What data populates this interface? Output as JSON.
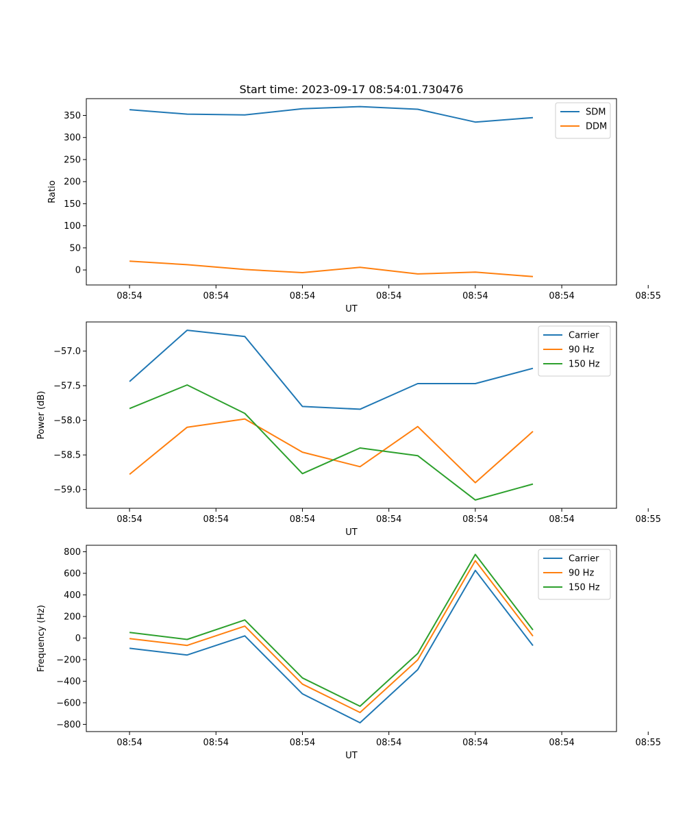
{
  "figure_title": "Start time: 2023-09-17 08:54:01.730476",
  "chart_data": [
    {
      "type": "line",
      "title": "Start time: 2023-09-17 08:54:01.730476",
      "xlabel": "UT",
      "ylabel": "Ratio",
      "xlim": [
        -0.75,
        8.45
      ],
      "ylim": [
        -34,
        388
      ],
      "x_ticks": [
        {
          "value": 0,
          "label": "08:54"
        },
        {
          "value": 1.5,
          "label": "08:54"
        },
        {
          "value": 3,
          "label": "08:54"
        },
        {
          "value": 4.5,
          "label": "08:54"
        },
        {
          "value": 6,
          "label": "08:54"
        },
        {
          "value": 7.5,
          "label": "08:54"
        },
        {
          "value": 9,
          "label": "08:55"
        }
      ],
      "y_ticks": [
        0,
        50,
        100,
        150,
        200,
        250,
        300,
        350
      ],
      "legend_position": "top-right",
      "x": [
        0,
        1,
        2,
        3,
        4,
        5,
        6,
        7
      ],
      "series": [
        {
          "name": "SDM",
          "color": "#1f77b4",
          "values": [
            363,
            353,
            351,
            365,
            370,
            364,
            335,
            345
          ]
        },
        {
          "name": "DDM",
          "color": "#ff7f0e",
          "values": [
            20,
            12,
            1,
            -6,
            6,
            -9,
            -5,
            -15
          ]
        }
      ]
    },
    {
      "type": "line",
      "title": "",
      "xlabel": "UT",
      "ylabel": "Power (dB)",
      "xlim": [
        -0.75,
        8.45
      ],
      "ylim": [
        -59.27,
        -56.58
      ],
      "x_ticks": [
        {
          "value": 0,
          "label": "08:54"
        },
        {
          "value": 1.5,
          "label": "08:54"
        },
        {
          "value": 3,
          "label": "08:54"
        },
        {
          "value": 4.5,
          "label": "08:54"
        },
        {
          "value": 6,
          "label": "08:54"
        },
        {
          "value": 7.5,
          "label": "08:54"
        },
        {
          "value": 9,
          "label": "08:55"
        }
      ],
      "y_ticks": [
        -57.0,
        -57.5,
        -58.0,
        -58.5,
        -59.0
      ],
      "y_tick_labels": [
        "−57.0",
        "−57.5",
        "−58.0",
        "−58.5",
        "−59.0"
      ],
      "legend_position": "top-right",
      "x": [
        0,
        1,
        2,
        3,
        4,
        5,
        6,
        7
      ],
      "series": [
        {
          "name": "Carrier",
          "color": "#1f77b4",
          "values": [
            -57.44,
            -56.7,
            -56.79,
            -57.8,
            -57.84,
            -57.47,
            -57.47,
            -57.25
          ]
        },
        {
          "name": "90 Hz",
          "color": "#ff7f0e",
          "values": [
            -58.78,
            -58.1,
            -57.98,
            -58.46,
            -58.67,
            -58.09,
            -58.9,
            -58.16
          ]
        },
        {
          "name": "150 Hz",
          "color": "#2ca02c",
          "values": [
            -57.83,
            -57.49,
            -57.9,
            -58.77,
            -58.4,
            -58.51,
            -59.15,
            -58.92
          ]
        }
      ]
    },
    {
      "type": "line",
      "title": "",
      "xlabel": "UT",
      "ylabel": "Frequency (Hz)",
      "xlim": [
        -0.75,
        8.45
      ],
      "ylim": [
        -867,
        860
      ],
      "x_ticks": [
        {
          "value": 0,
          "label": "08:54"
        },
        {
          "value": 1.5,
          "label": "08:54"
        },
        {
          "value": 3,
          "label": "08:54"
        },
        {
          "value": 4.5,
          "label": "08:54"
        },
        {
          "value": 6,
          "label": "08:54"
        },
        {
          "value": 7.5,
          "label": "08:54"
        },
        {
          "value": 9,
          "label": "08:55"
        }
      ],
      "y_ticks": [
        800,
        600,
        400,
        200,
        0,
        -200,
        -400,
        -600,
        -800
      ],
      "y_tick_labels": [
        "800",
        "600",
        "400",
        "200",
        "0",
        "−200",
        "−400",
        "−600",
        "−800"
      ],
      "legend_position": "top-right",
      "x": [
        0,
        1,
        2,
        3,
        4,
        5,
        6,
        7
      ],
      "series": [
        {
          "name": "Carrier",
          "color": "#1f77b4",
          "values": [
            -95,
            -157,
            20,
            -517,
            -785,
            -293,
            627,
            -70
          ]
        },
        {
          "name": "90 Hz",
          "color": "#ff7f0e",
          "values": [
            -5,
            -68,
            110,
            -427,
            -690,
            -203,
            717,
            18
          ]
        },
        {
          "name": "150 Hz",
          "color": "#2ca02c",
          "values": [
            52,
            -13,
            167,
            -370,
            -632,
            -143,
            775,
            75
          ]
        }
      ]
    }
  ]
}
